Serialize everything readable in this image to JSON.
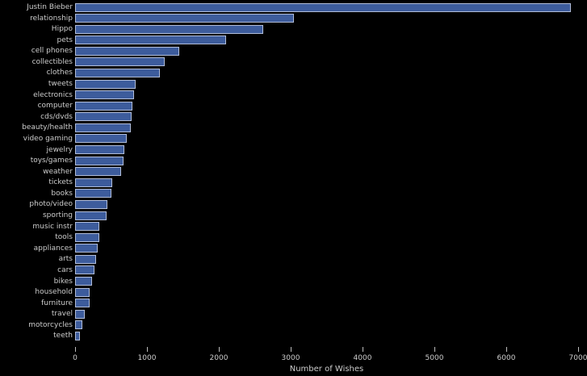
{
  "chart_data": {
    "type": "bar",
    "orientation": "horizontal",
    "title": "",
    "xlabel": "Number of Wishes",
    "ylabel": "",
    "xlim": [
      0,
      7000
    ],
    "xticks": [
      0,
      1000,
      2000,
      3000,
      4000,
      5000,
      6000,
      7000
    ],
    "grid": false,
    "legend": false,
    "categories": [
      "Justin Bieber",
      "relationship",
      "Hippo",
      "pets",
      "cell phones",
      "collectibles",
      "clothes",
      "tweets",
      "electronics",
      "computer",
      "cds/dvds",
      "beauty/health",
      "video gaming",
      "jewelry",
      "toys/games",
      "weather",
      "tickets",
      "books",
      "photo/video",
      "sporting",
      "music instr",
      "tools",
      "appliances",
      "arts",
      "cars",
      "bikes",
      "household",
      "furniture",
      "travel",
      "motorcycles",
      "teeth"
    ],
    "values": [
      6900,
      3050,
      2620,
      2100,
      1450,
      1250,
      1180,
      840,
      820,
      800,
      790,
      775,
      720,
      690,
      675,
      640,
      520,
      510,
      450,
      440,
      340,
      335,
      315,
      295,
      275,
      235,
      205,
      200,
      135,
      105,
      70
    ],
    "colors": {
      "background": "#000000",
      "bar_fill": "#3d5c9c",
      "bar_border": "#b0bcd8",
      "text": "#cccccc"
    }
  }
}
